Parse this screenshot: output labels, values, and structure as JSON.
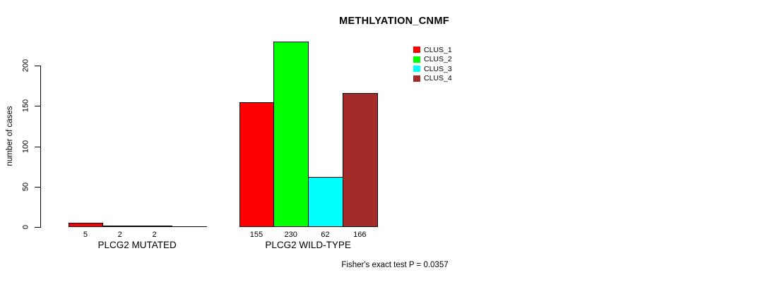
{
  "chart_data": {
    "type": "bar",
    "title": "METHLYATION_CNMF",
    "xlabel": "",
    "ylabel": "number of cases",
    "categories": [
      "PLCG2 MUTATED",
      "PLCG2 WILD-TYPE"
    ],
    "series": [
      {
        "name": "CLUS_1",
        "color": "#ff0000",
        "values": [
          5,
          155
        ]
      },
      {
        "name": "CLUS_2",
        "color": "#00ff00",
        "values": [
          2,
          230
        ]
      },
      {
        "name": "CLUS_3",
        "color": "#00ffff",
        "values": [
          2,
          62
        ]
      },
      {
        "name": "CLUS_4",
        "color": "#a52a2a",
        "values": [
          0,
          166
        ]
      }
    ],
    "bar_value_labels": [
      [
        "5",
        "2",
        "2",
        ""
      ],
      [
        "155",
        "230",
        "62",
        "166"
      ]
    ],
    "yticks": [
      0,
      50,
      100,
      150,
      200
    ],
    "ylim": [
      0,
      233
    ],
    "grid": false,
    "legend_position": "top-right",
    "annotation": "Fisher's exact test P = 0.0357",
    "background": "#ffffff",
    "axis_color": "#000000"
  }
}
